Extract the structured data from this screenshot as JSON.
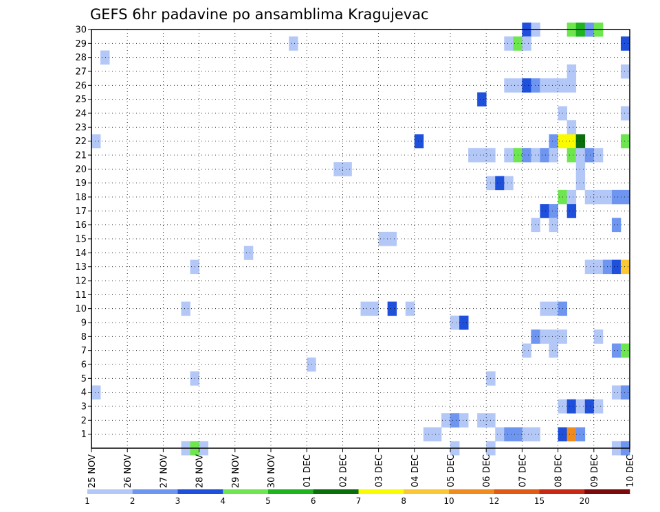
{
  "chart_data": {
    "type": "heatmap",
    "title": "GEFS 6hr padavine po ansamblima Kragujevac",
    "xlabel": "",
    "ylabel": "",
    "x_ticks": [
      "25 NOV",
      "26 NOV",
      "27 NOV",
      "28 NOV",
      "29 NOV",
      "30 NOV",
      "01 DEC",
      "02 DEC",
      "03 DEC",
      "04 DEC",
      "05 DEC",
      "06 DEC",
      "07 DEC",
      "08 DEC",
      "09 DEC",
      "10 DEC"
    ],
    "x_range_steps": [
      0,
      60
    ],
    "steps_per_day": 4,
    "y_ticks": [
      1,
      2,
      3,
      4,
      5,
      6,
      7,
      8,
      9,
      10,
      11,
      12,
      13,
      14,
      15,
      16,
      17,
      18,
      19,
      20,
      21,
      22,
      23,
      24,
      25,
      26,
      27,
      28,
      29,
      30
    ],
    "y_range": [
      0,
      30
    ],
    "grid": true,
    "colorbar": {
      "labels": [
        "1",
        "2",
        "3",
        "4",
        "5",
        "6",
        "7",
        "8",
        "10",
        "12",
        "15",
        "20"
      ],
      "colors": [
        "#b4c8f8",
        "#6e96f0",
        "#1e50dc",
        "#6ee650",
        "#1eb41e",
        "#0a6e0a",
        "#fafa00",
        "#fac832",
        "#f08c1e",
        "#e05a14",
        "#c82814",
        "#7d0a0a"
      ]
    },
    "cells": [
      [
        30,
        48,
        "#1e50dc"
      ],
      [
        30,
        49,
        "#b4c8f8"
      ],
      [
        30,
        53,
        "#6ee650"
      ],
      [
        30,
        54,
        "#1eb41e"
      ],
      [
        30,
        55,
        "#6e96f0"
      ],
      [
        30,
        56,
        "#6ee650"
      ],
      [
        29,
        22,
        "#b4c8f8"
      ],
      [
        29,
        46,
        "#b4c8f8"
      ],
      [
        29,
        47,
        "#6ee650"
      ],
      [
        29,
        48,
        "#b4c8f8"
      ],
      [
        29,
        59,
        "#1e50dc"
      ],
      [
        28,
        1,
        "#b4c8f8"
      ],
      [
        27,
        53,
        "#b4c8f8"
      ],
      [
        27,
        59,
        "#b4c8f8"
      ],
      [
        26,
        46,
        "#b4c8f8"
      ],
      [
        26,
        47,
        "#b4c8f8"
      ],
      [
        26,
        48,
        "#1e50dc"
      ],
      [
        26,
        49,
        "#6e96f0"
      ],
      [
        26,
        50,
        "#b4c8f8"
      ],
      [
        26,
        51,
        "#b4c8f8"
      ],
      [
        26,
        52,
        "#b4c8f8"
      ],
      [
        26,
        53,
        "#b4c8f8"
      ],
      [
        25,
        43,
        "#1e50dc"
      ],
      [
        24,
        52,
        "#b4c8f8"
      ],
      [
        24,
        59,
        "#b4c8f8"
      ],
      [
        23,
        53,
        "#b4c8f8"
      ],
      [
        22,
        0,
        "#b4c8f8"
      ],
      [
        22,
        36,
        "#1e50dc"
      ],
      [
        22,
        51,
        "#6e96f0"
      ],
      [
        22,
        52,
        "#fafa00"
      ],
      [
        22,
        53,
        "#fafa00"
      ],
      [
        22,
        54,
        "#0a6e0a"
      ],
      [
        22,
        59,
        "#6ee650"
      ],
      [
        21,
        42,
        "#b4c8f8"
      ],
      [
        21,
        43,
        "#b4c8f8"
      ],
      [
        21,
        44,
        "#b4c8f8"
      ],
      [
        21,
        46,
        "#b4c8f8"
      ],
      [
        21,
        47,
        "#6ee650"
      ],
      [
        21,
        48,
        "#6e96f0"
      ],
      [
        21,
        49,
        "#b4c8f8"
      ],
      [
        21,
        50,
        "#6e96f0"
      ],
      [
        21,
        51,
        "#b4c8f8"
      ],
      [
        21,
        53,
        "#6ee650"
      ],
      [
        21,
        54,
        "#b4c8f8"
      ],
      [
        21,
        55,
        "#6e96f0"
      ],
      [
        21,
        56,
        "#b4c8f8"
      ],
      [
        20,
        27,
        "#b4c8f8"
      ],
      [
        20,
        28,
        "#b4c8f8"
      ],
      [
        20,
        54,
        "#b4c8f8"
      ],
      [
        19,
        44,
        "#b4c8f8"
      ],
      [
        19,
        45,
        "#1e50dc"
      ],
      [
        19,
        46,
        "#b4c8f8"
      ],
      [
        19,
        54,
        "#b4c8f8"
      ],
      [
        18,
        52,
        "#6ee650"
      ],
      [
        18,
        53,
        "#b4c8f8"
      ],
      [
        18,
        55,
        "#b4c8f8"
      ],
      [
        18,
        56,
        "#b4c8f8"
      ],
      [
        18,
        57,
        "#b4c8f8"
      ],
      [
        18,
        58,
        "#6e96f0"
      ],
      [
        18,
        59,
        "#6e96f0"
      ],
      [
        17,
        50,
        "#1e50dc"
      ],
      [
        17,
        51,
        "#6e96f0"
      ],
      [
        17,
        53,
        "#1e50dc"
      ],
      [
        16,
        49,
        "#b4c8f8"
      ],
      [
        16,
        51,
        "#b4c8f8"
      ],
      [
        16,
        58,
        "#6e96f0"
      ],
      [
        15,
        32,
        "#b4c8f8"
      ],
      [
        15,
        33,
        "#b4c8f8"
      ],
      [
        14,
        17,
        "#b4c8f8"
      ],
      [
        13,
        11,
        "#b4c8f8"
      ],
      [
        13,
        55,
        "#b4c8f8"
      ],
      [
        13,
        56,
        "#b4c8f8"
      ],
      [
        13,
        57,
        "#6e96f0"
      ],
      [
        13,
        58,
        "#1e50dc"
      ],
      [
        13,
        59,
        "#fac832"
      ],
      [
        10,
        10,
        "#b4c8f8"
      ],
      [
        10,
        30,
        "#b4c8f8"
      ],
      [
        10,
        31,
        "#b4c8f8"
      ],
      [
        10,
        33,
        "#1e50dc"
      ],
      [
        10,
        35,
        "#b4c8f8"
      ],
      [
        10,
        50,
        "#b4c8f8"
      ],
      [
        10,
        51,
        "#b4c8f8"
      ],
      [
        10,
        52,
        "#6e96f0"
      ],
      [
        9,
        40,
        "#b4c8f8"
      ],
      [
        9,
        41,
        "#1e50dc"
      ],
      [
        8,
        49,
        "#6e96f0"
      ],
      [
        8,
        50,
        "#b4c8f8"
      ],
      [
        8,
        51,
        "#b4c8f8"
      ],
      [
        8,
        52,
        "#b4c8f8"
      ],
      [
        8,
        56,
        "#b4c8f8"
      ],
      [
        7,
        48,
        "#b4c8f8"
      ],
      [
        7,
        51,
        "#b4c8f8"
      ],
      [
        7,
        58,
        "#6e96f0"
      ],
      [
        7,
        59,
        "#6ee650"
      ],
      [
        6,
        24,
        "#b4c8f8"
      ],
      [
        5,
        11,
        "#b4c8f8"
      ],
      [
        5,
        44,
        "#b4c8f8"
      ],
      [
        4,
        0,
        "#b4c8f8"
      ],
      [
        4,
        58,
        "#b4c8f8"
      ],
      [
        4,
        59,
        "#6e96f0"
      ],
      [
        3,
        52,
        "#b4c8f8"
      ],
      [
        3,
        53,
        "#1e50dc"
      ],
      [
        3,
        54,
        "#b4c8f8"
      ],
      [
        3,
        55,
        "#1e50dc"
      ],
      [
        3,
        56,
        "#b4c8f8"
      ],
      [
        2,
        39,
        "#b4c8f8"
      ],
      [
        2,
        40,
        "#6e96f0"
      ],
      [
        2,
        41,
        "#b4c8f8"
      ],
      [
        2,
        43,
        "#b4c8f8"
      ],
      [
        2,
        44,
        "#b4c8f8"
      ],
      [
        1,
        37,
        "#b4c8f8"
      ],
      [
        1,
        38,
        "#b4c8f8"
      ],
      [
        1,
        45,
        "#b4c8f8"
      ],
      [
        1,
        46,
        "#6e96f0"
      ],
      [
        1,
        47,
        "#6e96f0"
      ],
      [
        1,
        48,
        "#b4c8f8"
      ],
      [
        1,
        49,
        "#b4c8f8"
      ],
      [
        1,
        52,
        "#1e50dc"
      ],
      [
        1,
        53,
        "#f08c1e"
      ],
      [
        1,
        54,
        "#6e96f0"
      ],
      [
        0,
        10,
        "#b4c8f8"
      ],
      [
        0,
        11,
        "#6ee650"
      ],
      [
        0,
        12,
        "#b4c8f8"
      ],
      [
        0,
        40,
        "#b4c8f8"
      ],
      [
        0,
        44,
        "#b4c8f8"
      ],
      [
        0,
        58,
        "#b4c8f8"
      ],
      [
        0,
        59,
        "#6e96f0"
      ]
    ]
  }
}
